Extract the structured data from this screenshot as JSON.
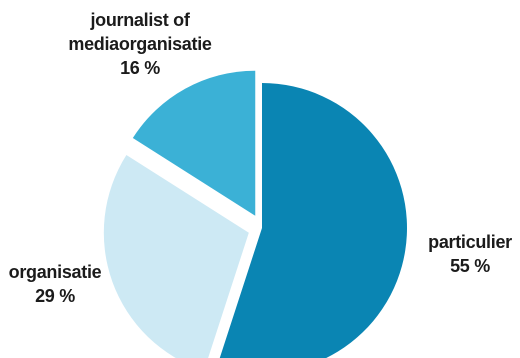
{
  "chart_data": {
    "type": "pie",
    "slices": [
      {
        "key": "particulier",
        "label": "particulier",
        "value": 55,
        "value_text": "55 %",
        "color": "#0a85b3",
        "exploded": false
      },
      {
        "key": "organisatie",
        "label": "organisatie",
        "value": 29,
        "value_text": "29 %",
        "color": "#cde9f4",
        "exploded": true
      },
      {
        "key": "journalist",
        "label_lines": [
          "journalist of",
          "mediaorganisatie"
        ],
        "value": 16,
        "value_text": "16 %",
        "color": "#3bb1d6",
        "exploded": true
      }
    ],
    "start": "12 o'clock",
    "direction": "clockwise",
    "title": "",
    "legend": "none"
  }
}
